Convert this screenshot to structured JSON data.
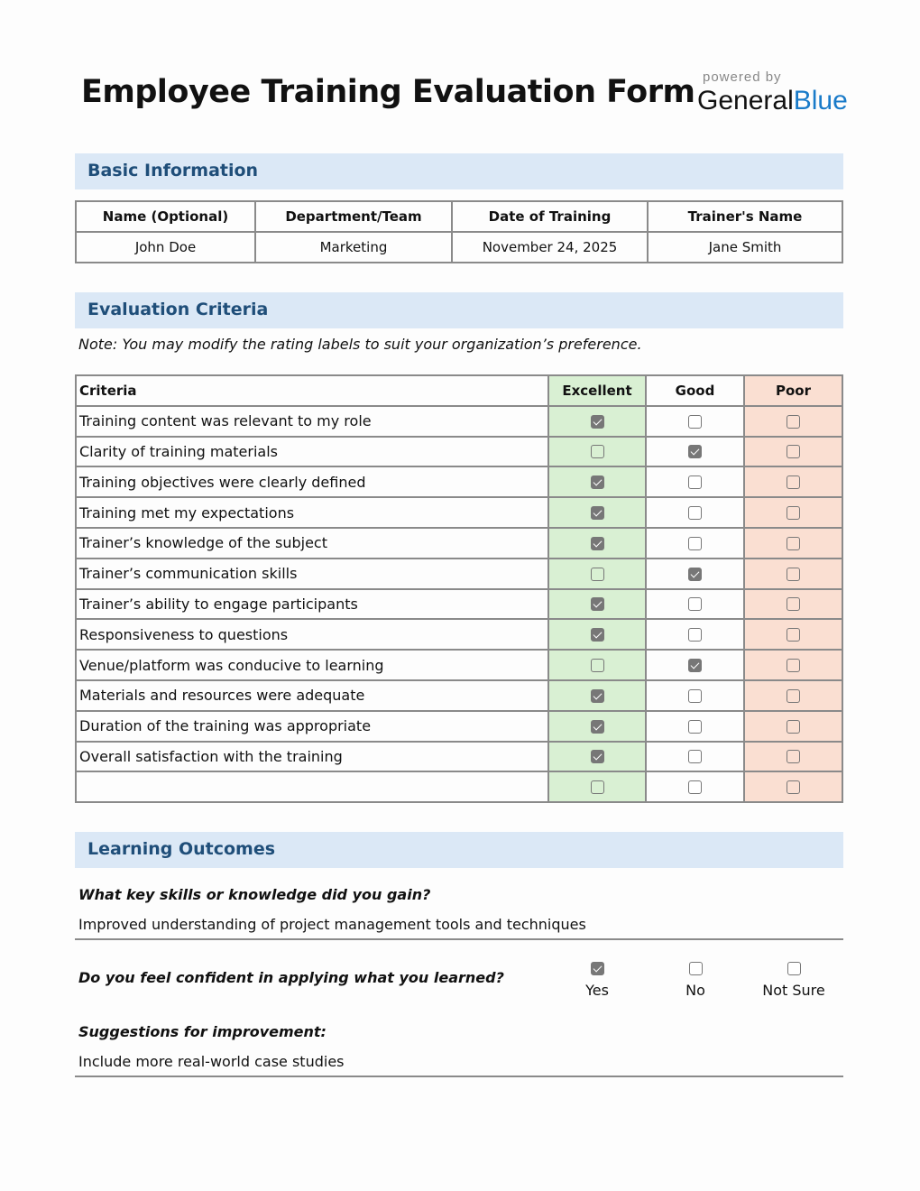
{
  "title": "Employee Training Evaluation Form",
  "brand": {
    "powered": "powered by",
    "general": "General",
    "blue": "Blue"
  },
  "basic": {
    "heading": "Basic Information",
    "headers": [
      "Name (Optional)",
      "Department/Team",
      "Date of Training",
      "Trainer's Name"
    ],
    "values": [
      "John Doe",
      "Marketing",
      "November 24, 2025",
      "Jane Smith"
    ]
  },
  "evaluation": {
    "heading": "Evaluation Criteria",
    "note": "Note: You may modify the rating labels to suit your organization’s preference.",
    "headers": [
      "Criteria",
      "Excellent",
      "Good",
      "Poor"
    ],
    "rows": [
      {
        "criteria": "Training content was relevant to my role",
        "rating": "Excellent"
      },
      {
        "criteria": "Clarity of training materials",
        "rating": "Good"
      },
      {
        "criteria": "Training objectives were clearly defined",
        "rating": "Excellent"
      },
      {
        "criteria": "Training met my expectations",
        "rating": "Excellent"
      },
      {
        "criteria": "Trainer’s knowledge of the subject",
        "rating": "Excellent"
      },
      {
        "criteria": "Trainer’s communication skills",
        "rating": "Good"
      },
      {
        "criteria": "Trainer’s ability to engage participants",
        "rating": "Excellent"
      },
      {
        "criteria": "Responsiveness to questions",
        "rating": "Excellent"
      },
      {
        "criteria": "Venue/platform was conducive to learning",
        "rating": "Good"
      },
      {
        "criteria": "Materials and resources were adequate",
        "rating": "Excellent"
      },
      {
        "criteria": "Duration of the training was appropriate",
        "rating": "Excellent"
      },
      {
        "criteria": "Overall satisfaction with the training",
        "rating": "Excellent"
      },
      {
        "criteria": "",
        "rating": ""
      }
    ]
  },
  "outcomes": {
    "heading": "Learning Outcomes",
    "q1": "What key skills or knowledge did you gain?",
    "a1": "Improved understanding of project management tools and techniques",
    "q2": "Do you feel confident in applying what you learned?",
    "options": [
      "Yes",
      "No",
      "Not Sure"
    ],
    "selected": "Yes",
    "q3": "Suggestions for improvement:",
    "a3": "Include more real-world case studies"
  },
  "colors": {
    "band": "#dbe8f6",
    "heading": "#1f4e79",
    "excellent": "#d9f0d3",
    "poor": "#fadfd2",
    "brand_blue": "#1a7bc9"
  }
}
